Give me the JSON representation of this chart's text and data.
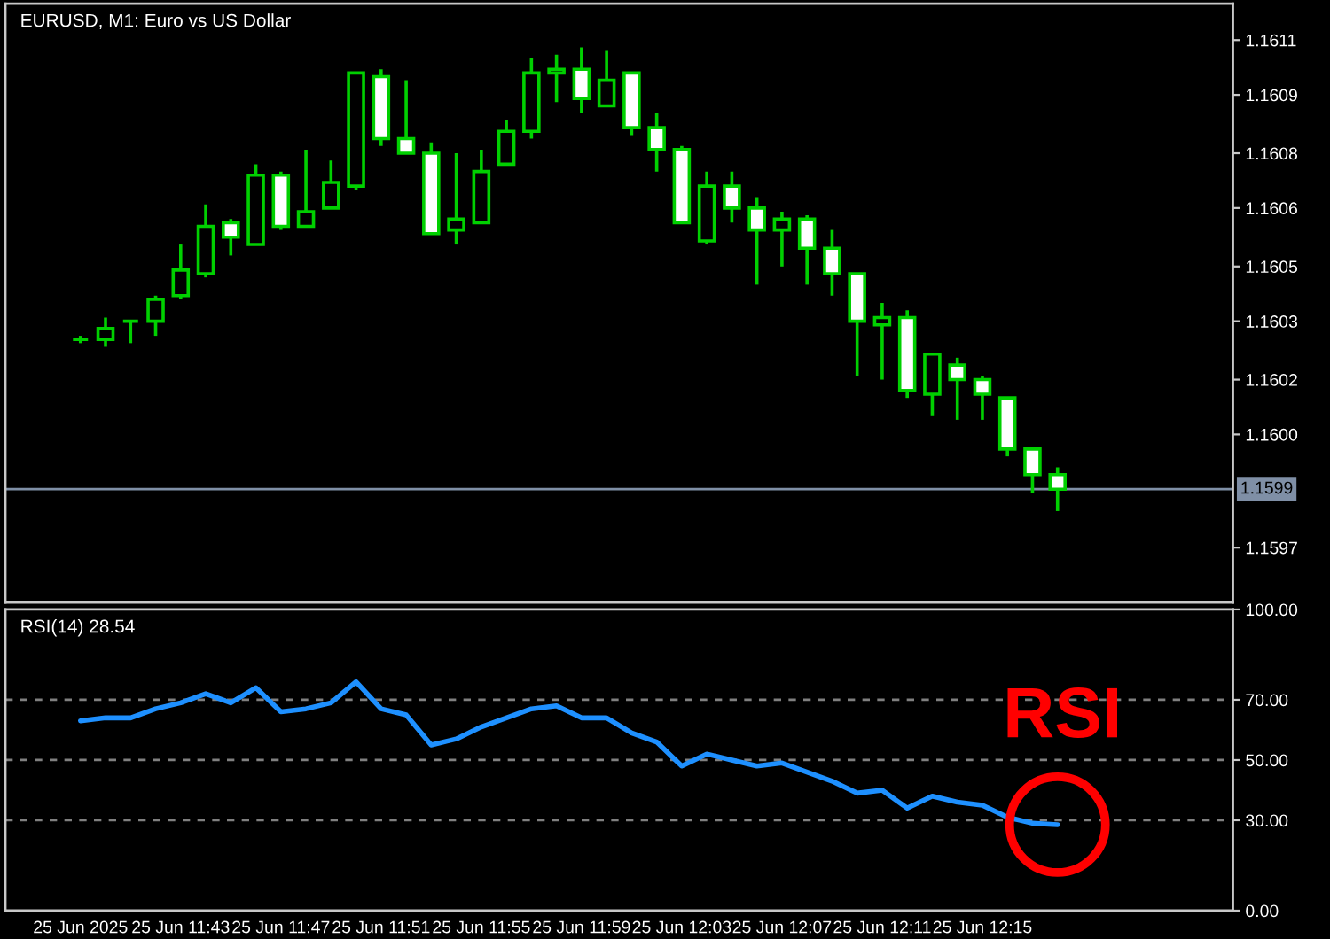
{
  "chart_data": [
    {
      "type": "candlestick",
      "title": "EURUSD, M1: Euro vs US Dollar",
      "color": "#00d000",
      "x": [
        "2025-06-25T11:39",
        "2025-06-25T11:40",
        "2025-06-25T11:41",
        "2025-06-25T11:42",
        "2025-06-25T11:43",
        "2025-06-25T11:44",
        "2025-06-25T11:45",
        "2025-06-25T11:46",
        "2025-06-25T11:47",
        "2025-06-25T11:48",
        "2025-06-25T11:49",
        "2025-06-25T11:50",
        "2025-06-25T11:51",
        "2025-06-25T11:52",
        "2025-06-25T11:53",
        "2025-06-25T11:54",
        "2025-06-25T11:55",
        "2025-06-25T11:56",
        "2025-06-25T11:57",
        "2025-06-25T11:58",
        "2025-06-25T11:59",
        "2025-06-25T12:00",
        "2025-06-25T12:01",
        "2025-06-25T12:02",
        "2025-06-25T12:03",
        "2025-06-25T12:04",
        "2025-06-25T12:05",
        "2025-06-25T12:06",
        "2025-06-25T12:07",
        "2025-06-25T12:08",
        "2025-06-25T12:09",
        "2025-06-25T12:10",
        "2025-06-25T12:11",
        "2025-06-25T12:12",
        "2025-06-25T12:13",
        "2025-06-25T12:14",
        "2025-06-25T12:15",
        "2025-06-25T12:16",
        "2025-06-25T12:17",
        "2025-06-25T12:18"
      ],
      "ohlc": [
        [
          1.16027,
          1.16028,
          1.16026,
          1.16027
        ],
        [
          1.16027,
          1.16033,
          1.16025,
          1.1603
        ],
        [
          1.16032,
          1.16032,
          1.16026,
          1.16032
        ],
        [
          1.16032,
          1.16039,
          1.16028,
          1.16038
        ],
        [
          1.16039,
          1.16053,
          1.16038,
          1.16046
        ],
        [
          1.16045,
          1.16064,
          1.16044,
          1.16058
        ],
        [
          1.16059,
          1.1606,
          1.1605,
          1.16055
        ],
        [
          1.16053,
          1.16075,
          1.16053,
          1.16072
        ],
        [
          1.16072,
          1.16073,
          1.16057,
          1.16058
        ],
        [
          1.16058,
          1.16079,
          1.16058,
          1.16062
        ],
        [
          1.16063,
          1.16076,
          1.16063,
          1.1607
        ],
        [
          1.16069,
          1.161,
          1.16068,
          1.161
        ],
        [
          1.16099,
          1.16101,
          1.1608,
          1.16082
        ],
        [
          1.16082,
          1.16098,
          1.16078,
          1.16078
        ],
        [
          1.16078,
          1.16081,
          1.16056,
          1.16056
        ],
        [
          1.16057,
          1.16078,
          1.16053,
          1.1606
        ],
        [
          1.16059,
          1.16079,
          1.16059,
          1.16073
        ],
        [
          1.16075,
          1.16087,
          1.16075,
          1.16084
        ],
        [
          1.16084,
          1.16104,
          1.16082,
          1.161
        ],
        [
          1.161,
          1.16105,
          1.16092,
          1.16101
        ],
        [
          1.16101,
          1.16107,
          1.16089,
          1.16093
        ],
        [
          1.16091,
          1.16106,
          1.16091,
          1.16098
        ],
        [
          1.161,
          1.161,
          1.16083,
          1.16085
        ],
        [
          1.16085,
          1.16089,
          1.16073,
          1.16079
        ],
        [
          1.16079,
          1.1608,
          1.16059,
          1.16059
        ],
        [
          1.16054,
          1.16073,
          1.16053,
          1.16069
        ],
        [
          1.16069,
          1.16073,
          1.16059,
          1.16063
        ],
        [
          1.16063,
          1.16066,
          1.16042,
          1.16057
        ],
        [
          1.16057,
          1.16062,
          1.16047,
          1.1606
        ],
        [
          1.1606,
          1.16061,
          1.16042,
          1.16052
        ],
        [
          1.16052,
          1.16057,
          1.16039,
          1.16045
        ],
        [
          1.16045,
          1.16045,
          1.16017,
          1.16032
        ],
        [
          1.16031,
          1.16037,
          1.16016,
          1.16033
        ],
        [
          1.16033,
          1.16035,
          1.16011,
          1.16013
        ],
        [
          1.16012,
          1.16023,
          1.16006,
          1.16023
        ],
        [
          1.1602,
          1.16022,
          1.16005,
          1.16016
        ],
        [
          1.16016,
          1.16017,
          1.16005,
          1.16012
        ],
        [
          1.16011,
          1.16011,
          1.15995,
          1.15997
        ],
        [
          1.15997,
          1.15997,
          1.15985,
          1.1599
        ],
        [
          1.1599,
          1.15992,
          1.1598,
          1.15986
        ]
      ],
      "colors": [
        "#00d000",
        "#000000",
        "#00d000",
        "#000000",
        "#000000",
        "#000000",
        "#ffffff",
        "#000000",
        "#ffffff",
        "#000000",
        "#000000",
        "#000000",
        "#ffffff",
        "#ffffff",
        "#ffffff",
        "#000000",
        "#000000",
        "#000000",
        "#000000",
        "#000000",
        "#ffffff",
        "#000000",
        "#ffffff",
        "#ffffff",
        "#ffffff",
        "#000000",
        "#ffffff",
        "#ffffff",
        "#000000",
        "#ffffff",
        "#ffffff",
        "#ffffff",
        "#000000",
        "#ffffff",
        "#000000",
        "#ffffff",
        "#ffffff",
        "#ffffff",
        "#ffffff",
        "#ffffff"
      ],
      "xlim": [
        "2025-06-25T11:36",
        "2025-06-25T12:25"
      ],
      "ylim": [
        1.15955,
        1.16119
      ],
      "yticks": [
        {
          "value": 1.16109,
          "label": "1.1611"
        },
        {
          "value": 1.16094,
          "label": "1.1609"
        },
        {
          "value": 1.16078,
          "label": "1.1608"
        },
        {
          "value": 1.16063,
          "label": "1.1606"
        },
        {
          "value": 1.16047,
          "label": "1.1605"
        },
        {
          "value": 1.16032,
          "label": "1.1603"
        },
        {
          "value": 1.16016,
          "label": "1.1602"
        },
        {
          "value": 1.16001,
          "label": "1.1600"
        },
        {
          "value": 1.1597,
          "label": "1.1597"
        }
      ],
      "ref_lines": [
        {
          "axis": "y",
          "value": 1.15986,
          "label": "1.1599",
          "color": "#7f8fa6",
          "line_style": "solid"
        }
      ],
      "tick_labels": "y"
    },
    {
      "type": "line",
      "title": "RSI(14) 28.54",
      "x": [
        "2025-06-25T11:39",
        "2025-06-25T11:40",
        "2025-06-25T11:41",
        "2025-06-25T11:42",
        "2025-06-25T11:43",
        "2025-06-25T11:44",
        "2025-06-25T11:45",
        "2025-06-25T11:46",
        "2025-06-25T11:47",
        "2025-06-25T11:48",
        "2025-06-25T11:49",
        "2025-06-25T11:50",
        "2025-06-25T11:51",
        "2025-06-25T11:52",
        "2025-06-25T11:53",
        "2025-06-25T11:54",
        "2025-06-25T11:55",
        "2025-06-25T11:56",
        "2025-06-25T11:57",
        "2025-06-25T11:58",
        "2025-06-25T11:59",
        "2025-06-25T12:00",
        "2025-06-25T12:01",
        "2025-06-25T12:02",
        "2025-06-25T12:03",
        "2025-06-25T12:04",
        "2025-06-25T12:05",
        "2025-06-25T12:06",
        "2025-06-25T12:07",
        "2025-06-25T12:08",
        "2025-06-25T12:09",
        "2025-06-25T12:10",
        "2025-06-25T12:11",
        "2025-06-25T12:12",
        "2025-06-25T12:13",
        "2025-06-25T12:14",
        "2025-06-25T12:15",
        "2025-06-25T12:16",
        "2025-06-25T12:17",
        "2025-06-25T12:18"
      ],
      "series": [
        {
          "color": "#1e90ff",
          "values": [
            63,
            64,
            64,
            67,
            69,
            72,
            69,
            74,
            66,
            67,
            69,
            76,
            67,
            65,
            55,
            57,
            61,
            64,
            67,
            68,
            64,
            64,
            59,
            56,
            48,
            52,
            50,
            48,
            49,
            46,
            43,
            39,
            40,
            34,
            38,
            36,
            35,
            31,
            29,
            28.54
          ]
        }
      ],
      "xlim": [
        "2025-06-25T11:36",
        "2025-06-25T12:25"
      ],
      "ylim": [
        0,
        100
      ],
      "yticks": [
        {
          "value": 0,
          "label": "0.00"
        },
        {
          "value": 30,
          "label": "30.00"
        },
        {
          "value": 50,
          "label": "50.00"
        },
        {
          "value": 70,
          "label": "70.00"
        },
        {
          "value": 100,
          "label": "100.00"
        }
      ],
      "xticks": [
        {
          "value": "2025-06-25T11:39",
          "label": "25 Jun 2025"
        },
        {
          "value": "2025-06-25T11:43",
          "label": "25 Jun 11:43"
        },
        {
          "value": "2025-06-25T11:47",
          "label": "25 Jun 11:47"
        },
        {
          "value": "2025-06-25T11:51",
          "label": "25 Jun 11:51"
        },
        {
          "value": "2025-06-25T11:55",
          "label": "25 Jun 11:55"
        },
        {
          "value": "2025-06-25T11:59",
          "label": "25 Jun 11:59"
        },
        {
          "value": "2025-06-25T12:03",
          "label": "25 Jun 12:03"
        },
        {
          "value": "2025-06-25T12:07",
          "label": "25 Jun 12:07"
        },
        {
          "value": "2025-06-25T12:11",
          "label": "25 Jun 12:11"
        },
        {
          "value": "2025-06-25T12:15",
          "label": "25 Jun 12:15"
        }
      ],
      "ref_lines": [
        {
          "axis": "y",
          "value": 70,
          "color": "#808080",
          "line_style": "dashed"
        },
        {
          "axis": "y",
          "value": 50,
          "color": "#808080",
          "line_style": "dashed"
        },
        {
          "axis": "y",
          "value": 30,
          "color": "#808080",
          "line_style": "dashed"
        }
      ],
      "annotations": [
        {
          "text": "RSI",
          "x": "2025-06-25T12:18",
          "y": 28.54
        }
      ]
    }
  ]
}
